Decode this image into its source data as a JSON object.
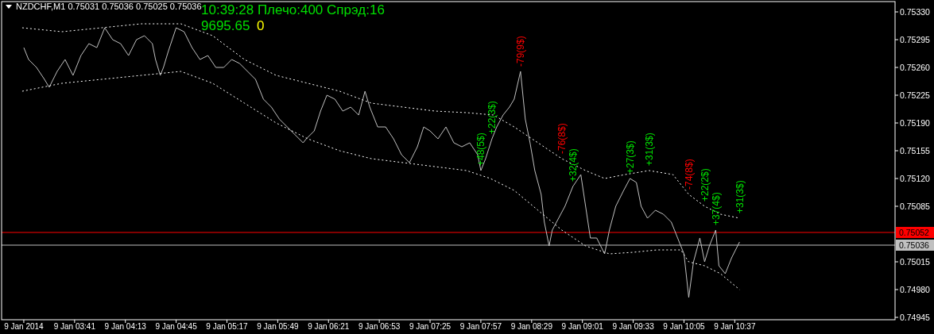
{
  "chart_data": {
    "type": "line",
    "title": "NZDCHF,M1  0.75031 0.75036 0.75025 0.75036",
    "subtitle": "10:39:28 Плечо:400 Спрэд:16",
    "xlim": [
      "2014-01-09T02:55",
      "2014-01-09T12:18"
    ],
    "ylim": [
      0.74942,
      0.75343
    ],
    "xticks": [
      {
        "value": "2014-01-09T03:09",
        "label": "9 Jan 2014"
      },
      {
        "value": "2014-01-09T03:41",
        "label": "9 Jan 03:41"
      },
      {
        "value": "2014-01-09T04:13",
        "label": "9 Jan 04:13"
      },
      {
        "value": "2014-01-09T04:45",
        "label": "9 Jan 04:45"
      },
      {
        "value": "2014-01-09T05:17",
        "label": "9 Jan 05:17"
      },
      {
        "value": "2014-01-09T05:49",
        "label": "9 Jan 05:49"
      },
      {
        "value": "2014-01-09T06:21",
        "label": "9 Jan 06:21"
      },
      {
        "value": "2014-01-09T06:53",
        "label": "9 Jan 06:53"
      },
      {
        "value": "2014-01-09T07:25",
        "label": "9 Jan 07:25"
      },
      {
        "value": "2014-01-09T07:57",
        "label": "9 Jan 07:57"
      },
      {
        "value": "2014-01-09T08:29",
        "label": "9 Jan 08:29"
      },
      {
        "value": "2014-01-09T09:01",
        "label": "9 Jan 09:01"
      },
      {
        "value": "2014-01-09T09:33",
        "label": "9 Jan 09:33"
      },
      {
        "value": "2014-01-09T10:05",
        "label": "9 Jan 10:05"
      },
      {
        "value": "2014-01-09T10:37",
        "label": "9 Jan 10:37"
      }
    ],
    "yticks": [
      {
        "value": 0.7533,
        "label": "0.75330"
      },
      {
        "value": 0.75295,
        "label": "0.75295"
      },
      {
        "value": 0.7526,
        "label": "0.75260"
      },
      {
        "value": 0.75225,
        "label": "0.75225"
      },
      {
        "value": 0.7519,
        "label": "0.75190"
      },
      {
        "value": 0.75155,
        "label": "0.75155"
      },
      {
        "value": 0.7512,
        "label": "0.75120"
      },
      {
        "value": 0.75085,
        "label": "0.75085"
      },
      {
        "value": 0.75015,
        "label": "0.75015"
      },
      {
        "value": 0.7498,
        "label": "0.74980"
      },
      {
        "value": 0.74945,
        "label": "0.74945"
      }
    ],
    "series": [
      {
        "color": "#c0c0c0",
        "line_style": "solid",
        "x": [
          "2014-01-09T03:09",
          "2014-01-09T03:12",
          "2014-01-09T03:17",
          "2014-01-09T03:22",
          "2014-01-09T03:25",
          "2014-01-09T03:30",
          "2014-01-09T03:35",
          "2014-01-09T03:40",
          "2014-01-09T03:45",
          "2014-01-09T03:50",
          "2014-01-09T03:55",
          "2014-01-09T04:00",
          "2014-01-09T04:05",
          "2014-01-09T04:10",
          "2014-01-09T04:15",
          "2014-01-09T04:20",
          "2014-01-09T04:25",
          "2014-01-09T04:30",
          "2014-01-09T04:32",
          "2014-01-09T04:35",
          "2014-01-09T04:37",
          "2014-01-09T04:40",
          "2014-01-09T04:45",
          "2014-01-09T04:50",
          "2014-01-09T04:55",
          "2014-01-09T05:00",
          "2014-01-09T05:05",
          "2014-01-09T05:10",
          "2014-01-09T05:15",
          "2014-01-09T05:20",
          "2014-01-09T05:25",
          "2014-01-09T05:30",
          "2014-01-09T05:35",
          "2014-01-09T05:40",
          "2014-01-09T05:45",
          "2014-01-09T05:50",
          "2014-01-09T05:55",
          "2014-01-09T06:00",
          "2014-01-09T06:05",
          "2014-01-09T06:07",
          "2014-01-09T06:12",
          "2014-01-09T06:16",
          "2014-01-09T06:20",
          "2014-01-09T06:25",
          "2014-01-09T06:30",
          "2014-01-09T06:35",
          "2014-01-09T06:40",
          "2014-01-09T06:44",
          "2014-01-09T06:47",
          "2014-01-09T06:52",
          "2014-01-09T06:57",
          "2014-01-09T07:02",
          "2014-01-09T07:07",
          "2014-01-09T07:12",
          "2014-01-09T07:17",
          "2014-01-09T07:21",
          "2014-01-09T07:25",
          "2014-01-09T07:30",
          "2014-01-09T07:35",
          "2014-01-09T07:40",
          "2014-01-09T07:45",
          "2014-01-09T07:50",
          "2014-01-09T07:55",
          "2014-01-09T07:57",
          "2014-01-09T08:00",
          "2014-01-09T08:04",
          "2014-01-09T08:07",
          "2014-01-09T08:11",
          "2014-01-09T08:15",
          "2014-01-09T08:18",
          "2014-01-09T08:22",
          "2014-01-09T08:25",
          "2014-01-09T08:28",
          "2014-01-09T08:31",
          "2014-01-09T08:35",
          "2014-01-09T08:37",
          "2014-01-09T08:40",
          "2014-01-09T08:42",
          "2014-01-09T08:46",
          "2014-01-09T08:50",
          "2014-01-09T08:55",
          "2014-01-09T09:00",
          "2014-01-09T09:03",
          "2014-01-09T09:06",
          "2014-01-09T09:10",
          "2014-01-09T09:15",
          "2014-01-09T09:18",
          "2014-01-09T09:22",
          "2014-01-09T09:27",
          "2014-01-09T09:31",
          "2014-01-09T09:35",
          "2014-01-09T09:38",
          "2014-01-09T09:42",
          "2014-01-09T09:47",
          "2014-01-09T09:52",
          "2014-01-09T09:57",
          "2014-01-09T10:01",
          "2014-01-09T10:05",
          "2014-01-09T10:08",
          "2014-01-09T10:11",
          "2014-01-09T10:15",
          "2014-01-09T10:18",
          "2014-01-09T10:21",
          "2014-01-09T10:25",
          "2014-01-09T10:27",
          "2014-01-09T10:31",
          "2014-01-09T10:35",
          "2014-01-09T10:40"
        ],
        "values": [
          0.75285,
          0.7527,
          0.7526,
          0.75245,
          0.75235,
          0.75255,
          0.7527,
          0.7525,
          0.75275,
          0.7529,
          0.75285,
          0.7531,
          0.75295,
          0.7529,
          0.75275,
          0.75295,
          0.753,
          0.7529,
          0.7527,
          0.7525,
          0.7526,
          0.7528,
          0.7531,
          0.75305,
          0.75285,
          0.7527,
          0.75275,
          0.7526,
          0.7526,
          0.7527,
          0.75265,
          0.75255,
          0.75245,
          0.7522,
          0.7521,
          0.75195,
          0.75185,
          0.75175,
          0.75165,
          0.7517,
          0.7518,
          0.75205,
          0.75225,
          0.7522,
          0.75205,
          0.7521,
          0.752,
          0.7523,
          0.7521,
          0.75185,
          0.75185,
          0.7517,
          0.7515,
          0.7514,
          0.7516,
          0.75185,
          0.7518,
          0.7517,
          0.75185,
          0.75165,
          0.7516,
          0.75165,
          0.7515,
          0.7513,
          0.75145,
          0.7517,
          0.75185,
          0.752,
          0.7521,
          0.7522,
          0.75255,
          0.75195,
          0.75165,
          0.7513,
          0.751,
          0.75065,
          0.75035,
          0.75055,
          0.7507,
          0.75085,
          0.7511,
          0.75125,
          0.75085,
          0.75045,
          0.75045,
          0.75025,
          0.75055,
          0.75085,
          0.75105,
          0.7512,
          0.75115,
          0.75085,
          0.7507,
          0.7508,
          0.75075,
          0.75065,
          0.75045,
          0.75025,
          0.7497,
          0.75015,
          0.75045,
          0.75015,
          0.75035,
          0.75055,
          0.7501,
          0.75,
          0.7502,
          0.7504
        ]
      },
      {
        "color": "#ffffff",
        "line_style": "dotted",
        "x": [
          "2014-01-09T03:08",
          "2014-01-09T03:33",
          "2014-01-09T03:58",
          "2014-01-09T04:23",
          "2014-01-09T04:48",
          "2014-01-09T05:08",
          "2014-01-09T05:28",
          "2014-01-09T05:48",
          "2014-01-09T06:08",
          "2014-01-09T06:28",
          "2014-01-09T06:48",
          "2014-01-09T07:08",
          "2014-01-09T07:28",
          "2014-01-09T07:48",
          "2014-01-09T08:05",
          "2014-01-09T08:18",
          "2014-01-09T08:33",
          "2014-01-09T08:48",
          "2014-01-09T09:03",
          "2014-01-09T09:15",
          "2014-01-09T09:28",
          "2014-01-09T09:43",
          "2014-01-09T09:58",
          "2014-01-09T10:08",
          "2014-01-09T10:18",
          "2014-01-09T10:28",
          "2014-01-09T10:40"
        ],
        "values": [
          0.7531,
          0.75305,
          0.7531,
          0.75315,
          0.75315,
          0.753,
          0.7527,
          0.7525,
          0.7524,
          0.7523,
          0.75215,
          0.7521,
          0.75205,
          0.75203,
          0.752,
          0.75185,
          0.75165,
          0.75145,
          0.7513,
          0.7512,
          0.75125,
          0.7513,
          0.75125,
          0.751,
          0.75085,
          0.75075,
          0.7507
        ]
      },
      {
        "color": "#ffffff",
        "line_style": "dotted",
        "x": [
          "2014-01-09T03:08",
          "2014-01-09T03:33",
          "2014-01-09T03:58",
          "2014-01-09T04:23",
          "2014-01-09T04:48",
          "2014-01-09T05:08",
          "2014-01-09T05:28",
          "2014-01-09T05:48",
          "2014-01-09T06:08",
          "2014-01-09T06:28",
          "2014-01-09T06:48",
          "2014-01-09T07:08",
          "2014-01-09T07:28",
          "2014-01-09T07:48",
          "2014-01-09T08:03",
          "2014-01-09T08:18",
          "2014-01-09T08:33",
          "2014-01-09T08:48",
          "2014-01-09T09:03",
          "2014-01-09T09:18",
          "2014-01-09T09:33",
          "2014-01-09T09:48",
          "2014-01-09T10:03",
          "2014-01-09T10:08",
          "2014-01-09T10:18",
          "2014-01-09T10:28",
          "2014-01-09T10:40"
        ],
        "values": [
          0.7523,
          0.7524,
          0.75245,
          0.7525,
          0.75255,
          0.7524,
          0.75215,
          0.7519,
          0.7517,
          0.75155,
          0.75145,
          0.7514,
          0.75135,
          0.7513,
          0.7512,
          0.75105,
          0.7508,
          0.75055,
          0.75035,
          0.75025,
          0.75027,
          0.7503,
          0.7503,
          0.75015,
          0.7501,
          0.75,
          0.7498
        ]
      }
    ],
    "ref_lines": [
      {
        "axis": "y",
        "value": 0.75052,
        "label": "0.75052",
        "color": "#ff0000"
      },
      {
        "axis": "y",
        "value": 0.75036,
        "label": "0.75036",
        "color": "#c0c0c0"
      }
    ],
    "annotations": [
      "9695.65",
      "0",
      {
        "text": "+48(5$)",
        "x": "2014-01-09T07:57",
        "y": 0.7513
      },
      {
        "text": "+22(3$)",
        "x": "2014-01-09T08:04",
        "y": 0.7517
      },
      {
        "text": "-79(9$)",
        "x": "2014-01-09T08:22",
        "y": 0.75255
      },
      {
        "text": "-76(8$)",
        "x": "2014-01-09T08:48",
        "y": 0.75145
      },
      {
        "text": "+32(4$)",
        "x": "2014-01-09T08:55",
        "y": 0.7511
      },
      {
        "text": "+27(3$)",
        "x": "2014-01-09T09:31",
        "y": 0.7512
      },
      {
        "text": "+31(3$)",
        "x": "2014-01-09T09:43",
        "y": 0.7513
      },
      {
        "text": "-74(8$)",
        "x": "2014-01-09T10:08",
        "y": 0.751
      },
      {
        "text": "+22(2$)",
        "x": "2014-01-09T10:18",
        "y": 0.75085
      },
      {
        "text": "+37(4$)",
        "x": "2014-01-09T10:25",
        "y": 0.75055
      },
      {
        "text": "+31(3$)",
        "x": "2014-01-09T10:40",
        "y": 0.7507
      }
    ],
    "grid": false,
    "marker": "none"
  }
}
